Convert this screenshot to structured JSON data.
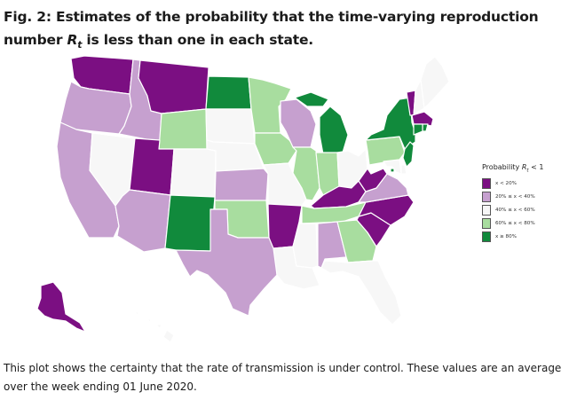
{
  "figure": {
    "title_prefix": "Fig. 2: Estimates of the probability that the time-varying reproduction number ",
    "title_symbol": "Rt",
    "title_suffix": " is less than one in each state.",
    "caption": "This plot shows the certainty that the rate of transmission is under control. These values are an average over the week ending 01 June 2020."
  },
  "legend": {
    "title_prefix": "Probability ",
    "title_symbol": "Rt",
    "title_suffix": " < 1",
    "categories": [
      {
        "key": "c1",
        "label": "x < 20%",
        "color": "#7b0f82"
      },
      {
        "key": "c2",
        "label": "20% ≤ x < 40%",
        "color": "#c6a0cf"
      },
      {
        "key": "c3",
        "label": "40% ≤ x < 60%",
        "color": "#f7f7f7"
      },
      {
        "key": "c4",
        "label": "60% ≤ x < 80%",
        "color": "#a8dd9f"
      },
      {
        "key": "c5",
        "label": "x ≥ 80%",
        "color": "#118a3c"
      }
    ]
  },
  "map_data": {
    "states": {
      "WA": "c1",
      "OR": "c2",
      "CA": "c2",
      "ID": "c2",
      "NV": "c3",
      "MT": "c1",
      "WY": "c4",
      "UT": "c1",
      "AZ": "c2",
      "CO": "c3",
      "NM": "c5",
      "ND": "c5",
      "SD": "c3",
      "NE": "c3",
      "KS": "c2",
      "OK": "c4",
      "TX": "c2",
      "MN": "c4",
      "IA": "c4",
      "MO": "c3",
      "AR": "c1",
      "LA": "c3",
      "WI": "c2",
      "IL": "c4",
      "MI": "c5",
      "IN": "c4",
      "OH": "c3",
      "KY": "c1",
      "TN": "c4",
      "MS": "c3",
      "AL": "c2",
      "GA": "c4",
      "FL": "c3",
      "SC": "c1",
      "NC": "c1",
      "VA": "c2",
      "WV": "c1",
      "PA": "c4",
      "NY": "c5",
      "VT": "c1",
      "NH": "c3",
      "ME": "c3",
      "MA": "c1",
      "RI": "c5",
      "CT": "c5",
      "NJ": "c5",
      "DE": "c3",
      "MD": "c3",
      "DC": "c5",
      "AK": "c1",
      "HI": "c3"
    }
  }
}
